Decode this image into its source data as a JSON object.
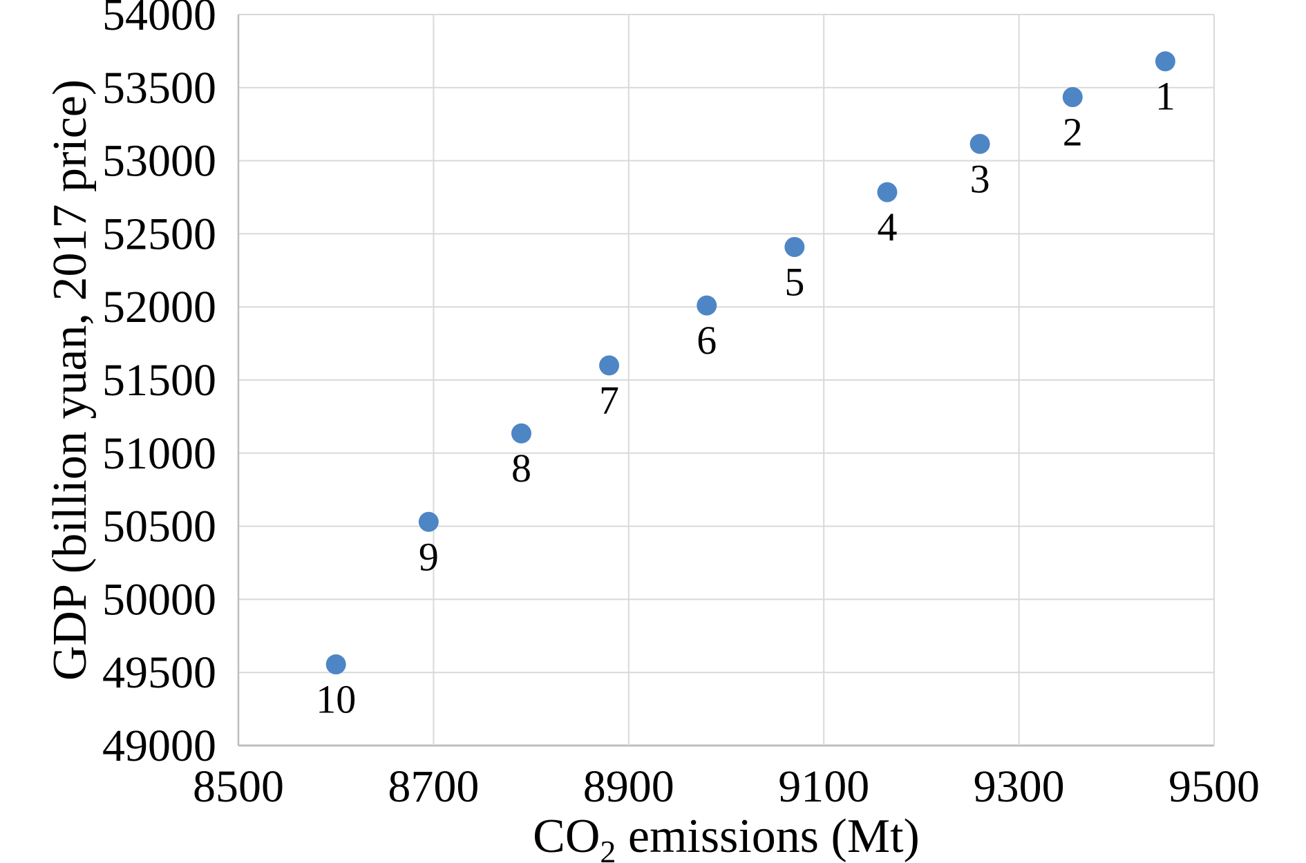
{
  "chart_data": {
    "type": "scatter",
    "title": "",
    "xlabel": {
      "pre": "CO",
      "sub": "2",
      "post": " emissions (Mt)"
    },
    "ylabel": "GDP (billion yuan, 2017 price)",
    "xlim": [
      8500,
      9500
    ],
    "ylim": [
      49000,
      54000
    ],
    "xticks": [
      8500,
      8700,
      8900,
      9100,
      9300,
      9500
    ],
    "yticks": [
      49000,
      49500,
      50000,
      50500,
      51000,
      51500,
      52000,
      52500,
      53000,
      53500,
      54000
    ],
    "grid": true,
    "legend_position": "none",
    "point_label_position": "below",
    "marker": {
      "shape": "circle",
      "radius_px": 14.5,
      "color": "#4E86C5"
    },
    "grid_color": "#D9D9D9",
    "axis_color": "#BDBDBD",
    "text_color": "#000000",
    "background_color": "#FFFFFF",
    "points": [
      {
        "label": "1",
        "x": 9450,
        "y": 53680
      },
      {
        "label": "2",
        "x": 9355,
        "y": 53435
      },
      {
        "label": "3",
        "x": 9260,
        "y": 53115
      },
      {
        "label": "4",
        "x": 9165,
        "y": 52785
      },
      {
        "label": "5",
        "x": 9070,
        "y": 52410
      },
      {
        "label": "6",
        "x": 8980,
        "y": 52010
      },
      {
        "label": "7",
        "x": 8880,
        "y": 51600
      },
      {
        "label": "8",
        "x": 8790,
        "y": 51135
      },
      {
        "label": "9",
        "x": 8695,
        "y": 50530
      },
      {
        "label": "10",
        "x": 8600,
        "y": 49555
      }
    ]
  }
}
